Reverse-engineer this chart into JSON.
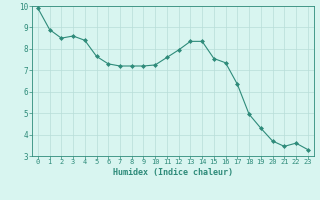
{
  "x": [
    0,
    1,
    2,
    3,
    4,
    5,
    6,
    7,
    8,
    9,
    10,
    11,
    12,
    13,
    14,
    15,
    16,
    17,
    18,
    19,
    20,
    21,
    22,
    23
  ],
  "y": [
    9.9,
    8.9,
    8.5,
    8.6,
    8.4,
    7.65,
    7.3,
    7.2,
    7.2,
    7.2,
    7.25,
    7.6,
    7.95,
    8.35,
    8.35,
    7.55,
    7.35,
    6.35,
    4.95,
    4.3,
    3.7,
    3.45,
    3.6,
    3.3
  ],
  "line_color": "#2e8b7a",
  "marker": "D",
  "marker_size": 2.0,
  "bg_color": "#d8f5f0",
  "grid_color": "#b8ddd8",
  "xlabel": "Humidex (Indice chaleur)",
  "ylabel": "",
  "xlim": [
    -0.5,
    23.5
  ],
  "ylim": [
    3,
    10
  ],
  "yticks": [
    3,
    4,
    5,
    6,
    7,
    8,
    9,
    10
  ],
  "xticks": [
    0,
    1,
    2,
    3,
    4,
    5,
    6,
    7,
    8,
    9,
    10,
    11,
    12,
    13,
    14,
    15,
    16,
    17,
    18,
    19,
    20,
    21,
    22,
    23
  ],
  "tick_color": "#2e8b7a",
  "label_color": "#2e8b7a",
  "spine_color": "#2e8b7a",
  "tick_fontsize": 5.0,
  "xlabel_fontsize": 6.0
}
